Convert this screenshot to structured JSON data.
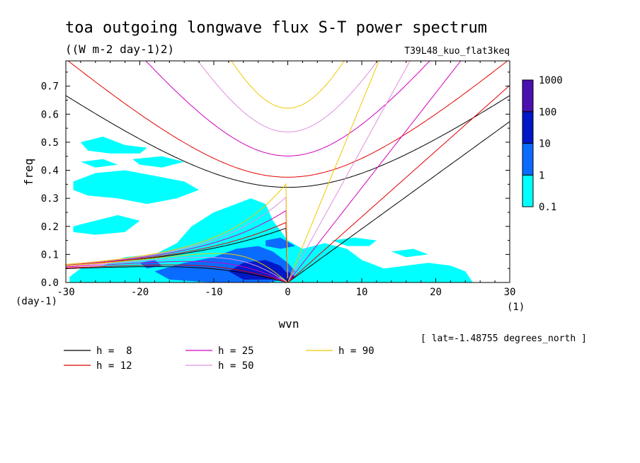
{
  "chart_data": {
    "type": "heatmap",
    "title": "toa outgoing longwave flux S-T power spectrum",
    "subtitle": "((W m-2 day-1)2)",
    "run_label": "T39L48_kuo_flat3keq",
    "xlabel": "wvn",
    "ylabel": "freq",
    "x_unit": "(1)",
    "y_unit": "(day-1)",
    "xlim": [
      -30,
      30
    ],
    "ylim": [
      0,
      0.79
    ],
    "x_ticks": [
      -30,
      -20,
      -10,
      0,
      10,
      20,
      30
    ],
    "x_tick_labels": [
      "-30",
      "-20",
      "-10",
      "0",
      "10",
      "20",
      "30"
    ],
    "y_ticks": [
      0,
      0.1,
      0.2,
      0.3,
      0.4,
      0.5,
      0.6,
      0.7
    ],
    "y_tick_labels": [
      "0.0",
      "0.1",
      "0.2",
      "0.3",
      "0.4",
      "0.5",
      "0.6",
      "0.7"
    ],
    "latitude_note": "[ lat=-1.48755 degrees_north ]",
    "colorbar": {
      "levels": [
        0.1,
        1,
        10,
        100,
        1000
      ],
      "level_labels": [
        "0.1",
        "1",
        "10",
        "100",
        "1000"
      ],
      "colors": [
        "#00ffff",
        "#0a6cff",
        "#0018c8",
        "#4a10b0"
      ]
    },
    "power_regions": [
      {
        "level": 1,
        "color": "#00ffff",
        "polygons": [
          [
            [
              -29.5,
              0.02
            ],
            [
              -28,
              0.05
            ],
            [
              -25,
              0.06
            ],
            [
              -22,
              0.09
            ],
            [
              -18,
              0.1
            ],
            [
              -15,
              0.14
            ],
            [
              -13,
              0.2
            ],
            [
              -10,
              0.25
            ],
            [
              -7,
              0.28
            ],
            [
              -5,
              0.3
            ],
            [
              -3,
              0.28
            ],
            [
              -2,
              0.22
            ],
            [
              0,
              0.15
            ],
            [
              2,
              0.12
            ],
            [
              5,
              0.14
            ],
            [
              8,
              0.12
            ],
            [
              10,
              0.08
            ],
            [
              13,
              0.05
            ],
            [
              16,
              0.06
            ],
            [
              19,
              0.07
            ],
            [
              22,
              0.06
            ],
            [
              24,
              0.04
            ],
            [
              25,
              0.0
            ],
            [
              -29.5,
              0.0
            ]
          ],
          [
            [
              -29,
              0.36
            ],
            [
              -26,
              0.39
            ],
            [
              -22,
              0.4
            ],
            [
              -18,
              0.38
            ],
            [
              -14,
              0.36
            ],
            [
              -12,
              0.33
            ],
            [
              -15,
              0.3
            ],
            [
              -19,
              0.28
            ],
            [
              -23,
              0.3
            ],
            [
              -27,
              0.31
            ],
            [
              -29,
              0.33
            ]
          ],
          [
            [
              -29,
              0.2
            ],
            [
              -26,
              0.22
            ],
            [
              -23,
              0.24
            ],
            [
              -20,
              0.22
            ],
            [
              -22,
              0.18
            ],
            [
              -26,
              0.17
            ],
            [
              -29,
              0.18
            ]
          ],
          [
            [
              -28,
              0.5
            ],
            [
              -25,
              0.52
            ],
            [
              -22,
              0.49
            ],
            [
              -19,
              0.48
            ],
            [
              -20,
              0.46
            ],
            [
              -24,
              0.46
            ],
            [
              -27,
              0.47
            ]
          ],
          [
            [
              -21,
              0.44
            ],
            [
              -17,
              0.45
            ],
            [
              -14,
              0.43
            ],
            [
              -17,
              0.41
            ],
            [
              -20,
              0.42
            ]
          ],
          [
            [
              -28,
              0.43
            ],
            [
              -25,
              0.44
            ],
            [
              -23,
              0.42
            ],
            [
              -26,
              0.41
            ]
          ],
          [
            [
              6,
              0.15
            ],
            [
              9,
              0.16
            ],
            [
              12,
              0.15
            ],
            [
              11,
              0.13
            ],
            [
              8,
              0.13
            ]
          ],
          [
            [
              14,
              0.11
            ],
            [
              17,
              0.12
            ],
            [
              19,
              0.1
            ],
            [
              16,
              0.09
            ]
          ]
        ]
      },
      {
        "level": 10,
        "color": "#0a6cff",
        "polygons": [
          [
            [
              -18,
              0.04
            ],
            [
              -14,
              0.07
            ],
            [
              -10,
              0.09
            ],
            [
              -7,
              0.12
            ],
            [
              -4,
              0.13
            ],
            [
              -2,
              0.11
            ],
            [
              0,
              0.07
            ],
            [
              1,
              0.04
            ],
            [
              0,
              0.01
            ],
            [
              -3,
              0.0
            ],
            [
              -10,
              0.0
            ],
            [
              -16,
              0.01
            ]
          ],
          [
            [
              -3,
              0.15
            ],
            [
              -1,
              0.16
            ],
            [
              1,
              0.13
            ],
            [
              -1,
              0.12
            ],
            [
              -3,
              0.13
            ]
          ],
          [
            [
              -20,
              0.07
            ],
            [
              -18,
              0.08
            ],
            [
              -17,
              0.06
            ],
            [
              -19,
              0.05
            ]
          ]
        ]
      },
      {
        "level": 100,
        "color": "#0018c8",
        "polygons": [
          [
            [
              -8,
              0.04
            ],
            [
              -6,
              0.07
            ],
            [
              -3,
              0.08
            ],
            [
              -1,
              0.06
            ],
            [
              0,
              0.03
            ],
            [
              -2,
              0.01
            ],
            [
              -6,
              0.01
            ]
          ],
          [
            [
              -1,
              0.02
            ],
            [
              0,
              0.04
            ],
            [
              1,
              0.02
            ],
            [
              0,
              0.0
            ]
          ]
        ]
      }
    ],
    "dispersion_curves": [
      {
        "label": "h =  8",
        "h": 8,
        "color": "#000000"
      },
      {
        "label": "h = 12",
        "h": 12,
        "color": "#e00000"
      },
      {
        "label": "h = 25",
        "h": 25,
        "color": "#d000c0"
      },
      {
        "label": "h = 50",
        "h": 50,
        "color": "#e090e0"
      },
      {
        "label": "h = 90",
        "h": 90,
        "color": "#f0c800"
      }
    ]
  }
}
